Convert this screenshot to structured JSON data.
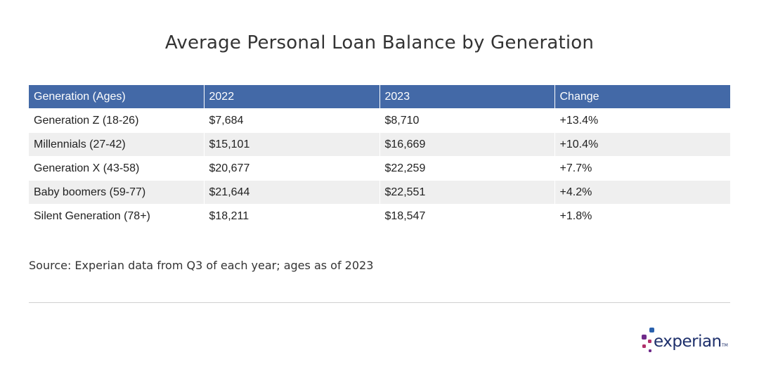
{
  "chart_data": {
    "type": "table",
    "title": "Average Personal Loan Balance by Generation",
    "columns": [
      "Generation (Ages)",
      "2022",
      "2023",
      "Change"
    ],
    "rows": [
      [
        "Generation Z (18-26)",
        "$7,684",
        "$8,710",
        "+13.4%"
      ],
      [
        "Millennials (27-42)",
        "$15,101",
        "$16,669",
        "+10.4%"
      ],
      [
        "Generation X (43-58)",
        "$20,677",
        "$22,259",
        "+7.7%"
      ],
      [
        "Baby boomers (59-77)",
        "$21,644",
        "$22,551",
        "+4.2%"
      ],
      [
        "Silent Generation (78+)",
        "$18,211",
        "$18,547",
        "+1.8%"
      ]
    ],
    "source": "Source: Experian data from Q3 of each year; ages as of 2023"
  },
  "colors": {
    "header_bg": "#4369a7",
    "header_text": "#ffffff",
    "row_alt_bg": "#efefef",
    "logo_navy": "#1d2f6b",
    "logo_magenta": "#b0306a",
    "logo_purple": "#6f2b8a",
    "logo_blue": "#2a61ad"
  },
  "logo": {
    "name": "experian-logo",
    "wordmark": "experian",
    "tm": "TM"
  }
}
